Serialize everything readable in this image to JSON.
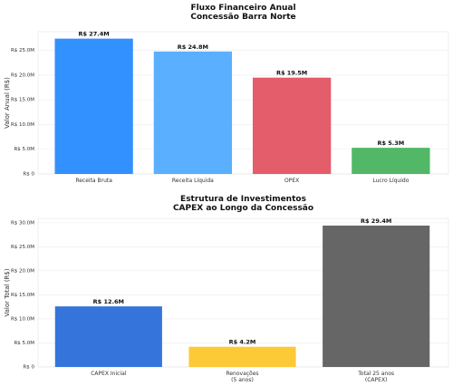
{
  "chart_data": [
    {
      "type": "bar",
      "title": "Fluxo Financeiro Anual\nConcessão Barra Norte",
      "ylabel": "Valor Anual (R$)",
      "categories": [
        "Receita Bruta",
        "Receita Líquida",
        "OPEX",
        "Lucro Líquido"
      ],
      "values": [
        27400000,
        24800000,
        19500000,
        5300000
      ],
      "value_labels": [
        "R$ 27.4M",
        "R$ 24.8M",
        "R$ 19.5M",
        "R$ 5.3M"
      ],
      "colors": [
        "#3391ff",
        "#5aafff",
        "#e35d6a",
        "#52b868"
      ],
      "ylim": [
        0,
        28800000
      ],
      "yticks": [
        {
          "value": 0,
          "label": "R$ 0"
        },
        {
          "value": 5000000,
          "label": "R$ 5.0M"
        },
        {
          "value": 10000000,
          "label": "R$ 10.0M"
        },
        {
          "value": 15000000,
          "label": "R$ 15.0M"
        },
        {
          "value": 20000000,
          "label": "R$ 20.0M"
        },
        {
          "value": 25000000,
          "label": "R$ 25.0M"
        }
      ],
      "grid": true
    },
    {
      "type": "bar",
      "title": "Estrutura de Investimentos\nCAPEX ao Longo da Concessão",
      "ylabel": "Valor Total (R$)",
      "categories": [
        "CAPEX Inicial",
        "Renovações\n(5 anos)",
        "Total 25 anos\n(CAPEX)"
      ],
      "values": [
        12600000,
        4200000,
        29400000
      ],
      "value_labels": [
        "R$ 12.6M",
        "R$ 4.2M",
        "R$ 29.4M"
      ],
      "colors": [
        "#3575db",
        "#fcc937",
        "#666666"
      ],
      "ylim": [
        0,
        30900000
      ],
      "yticks": [
        {
          "value": 0,
          "label": "R$ 0"
        },
        {
          "value": 5000000,
          "label": "R$ 5.0M"
        },
        {
          "value": 10000000,
          "label": "R$ 10.0M"
        },
        {
          "value": 15000000,
          "label": "R$ 15.0M"
        },
        {
          "value": 20000000,
          "label": "R$ 20.0M"
        },
        {
          "value": 25000000,
          "label": "R$ 25.0M"
        },
        {
          "value": 30000000,
          "label": "R$ 30.0M"
        }
      ],
      "grid": true
    }
  ]
}
